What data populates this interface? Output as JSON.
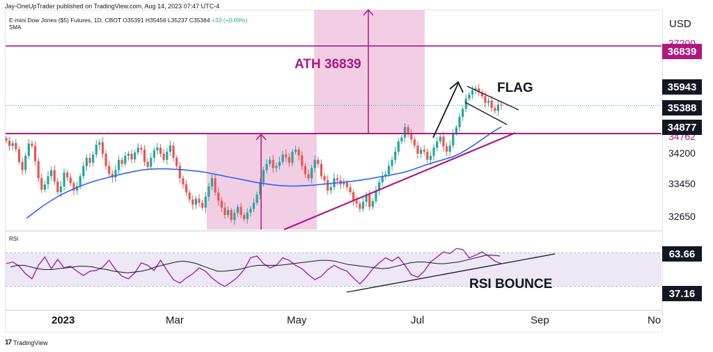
{
  "header": {
    "publisher": "Jay-OneUpTrader published on TradingView.com, Aug 14, 2023 07:47 UTC-4",
    "symbol_name": "E-mini Dow Jones ($5) Futures, 1D, CBOT",
    "ohlc": "O35391 H35456 L35237 C35384",
    "change": "+33 (+0.09%)",
    "indicator": "SMA",
    "currency": "USD"
  },
  "rsi_panel": {
    "label": "RSI"
  },
  "footer": {
    "brand": "TradingView",
    "logo": "tradingview-logo-icon"
  },
  "annotations": {
    "ath": "ATH 36839",
    "flag": "FLAG",
    "rsi_bounce": "RSI BOUNCE"
  },
  "colors": {
    "annotation": "#b0177f",
    "box_fill": "#f0c6e1",
    "sma": "#2962ff",
    "up": "#26a69a",
    "down": "#ef5350",
    "rsi_line": "#9c27b0",
    "rsi_band": "#ede7f6",
    "tag_dark": "#131722"
  },
  "chart_data": {
    "type": "candlestick",
    "price_axis": {
      "ticks": [
        32650,
        33450,
        34200
      ],
      "partial_ticks": [
        "37200",
        "34762"
      ],
      "tags": [
        {
          "label": "36839",
          "value": 36839,
          "color": "#b0177f"
        },
        {
          "label": "35943",
          "value": 35943,
          "color": "#131722"
        },
        {
          "label": "35388",
          "value": 35388,
          "color": "#131722"
        },
        {
          "label": "34877",
          "value": 34877,
          "color": "#131722"
        }
      ]
    },
    "x_axis": {
      "ticks": [
        {
          "label": "2023",
          "bold": true
        },
        {
          "label": "Mar",
          "bold": false
        },
        {
          "label": "May",
          "bold": false
        },
        {
          "label": "Jul",
          "bold": false
        },
        {
          "label": "Sep",
          "bold": false
        },
        {
          "label": "No",
          "bold": false
        }
      ]
    },
    "ohlc_legend": {
      "open": 35391,
      "high": 35456,
      "low": 35237,
      "close": 35384,
      "change": 33,
      "change_pct": 0.09
    },
    "closes": [
      34520,
      34390,
      34460,
      34310,
      34000,
      33800,
      34150,
      34450,
      34390,
      34020,
      33600,
      33320,
      33450,
      33650,
      33800,
      33520,
      33260,
      33400,
      33740,
      33620,
      33480,
      33300,
      33410,
      33650,
      33900,
      34100,
      33980,
      34180,
      34420,
      34480,
      34200,
      33900,
      33710,
      33620,
      33800,
      34050,
      33950,
      34150,
      34200,
      34060,
      34230,
      34350,
      34300,
      34000,
      33880,
      34100,
      34280,
      34350,
      34200,
      34050,
      34250,
      34400,
      34100,
      33900,
      33600,
      33450,
      33250,
      33080,
      32950,
      33100,
      33000,
      32880,
      33150,
      33400,
      33600,
      33250,
      33050,
      32880,
      32700,
      32820,
      32580,
      32750,
      32900,
      32700,
      32600,
      32760,
      32850,
      33000,
      33200,
      33500,
      33800,
      33950,
      34050,
      33850,
      33900,
      34000,
      34180,
      34120,
      33980,
      34250,
      34300,
      34160,
      33900,
      33700,
      33600,
      33850,
      34050,
      33950,
      33650,
      33550,
      33300,
      33380,
      33600,
      33550,
      33450,
      33500,
      33380,
      33260,
      33050,
      32980,
      32850,
      33020,
      33200,
      32900,
      33040,
      33300,
      33500,
      33650,
      33700,
      33900,
      34050,
      34250,
      34500,
      34600,
      34850,
      34700,
      34550,
      34400,
      34200,
      34300,
      34250,
      34050,
      34150,
      34350,
      34500,
      34620,
      34380,
      34250,
      34400,
      34700,
      34850,
      35100,
      35300,
      35550,
      35650,
      35760,
      35800,
      35700,
      35610,
      35450,
      35500,
      35320,
      35250,
      35400,
      35384
    ],
    "sma_values": [
      32620,
      32770,
      32920,
      33050,
      33170,
      33270,
      33360,
      33440,
      33510,
      33570,
      33620,
      33670,
      33720,
      33760,
      33800,
      33820,
      33830,
      33830,
      33820,
      33810,
      33790,
      33770,
      33740,
      33700,
      33660,
      33620,
      33580,
      33540,
      33500,
      33470,
      33440,
      33420,
      33410,
      33410,
      33420,
      33430,
      33450,
      33470,
      33490,
      33510,
      33530,
      33560,
      33590,
      33630,
      33660,
      33700,
      33740,
      33800,
      33870,
      33940,
      34000,
      34060,
      34120,
      34210,
      34330,
      34460,
      34600,
      34740,
      34860
    ],
    "rsi": {
      "values": [
        57,
        59,
        54,
        45,
        39,
        55,
        65,
        51,
        62,
        52,
        54,
        48,
        43,
        48,
        49,
        53,
        61,
        50,
        42,
        39,
        46,
        58,
        55,
        49,
        61,
        49,
        38,
        34,
        40,
        45,
        52,
        48,
        40,
        34,
        30,
        35,
        41,
        50,
        64,
        66,
        57,
        52,
        55,
        64,
        61,
        55,
        51,
        44,
        38,
        42,
        50,
        55,
        51,
        48,
        40,
        33,
        41,
        51,
        58,
        64,
        60,
        65,
        55,
        44,
        41,
        48,
        59,
        65,
        71,
        69,
        75,
        74,
        64,
        67,
        71,
        66,
        60,
        57
      ],
      "signal_values": [
        53,
        55,
        55,
        53,
        51,
        50,
        50,
        51,
        52,
        53,
        54,
        54,
        53,
        51,
        50,
        48,
        47,
        46,
        47,
        48,
        50,
        53,
        55,
        57,
        59,
        60,
        59,
        57,
        54,
        51,
        48,
        48,
        49,
        50,
        52,
        54,
        55,
        55,
        55,
        55,
        56,
        57,
        58,
        59,
        60,
        61,
        61,
        60,
        58,
        56,
        55,
        54,
        53,
        52,
        51,
        52,
        54,
        56,
        58,
        59,
        59,
        58,
        57,
        57,
        58,
        59,
        61,
        63,
        65,
        67,
        67,
        66
      ],
      "tags": [
        {
          "label": "63.66",
          "value": 63.66
        },
        {
          "label": "37.16",
          "value": 37.16
        }
      ],
      "band": [
        30,
        70
      ]
    }
  }
}
